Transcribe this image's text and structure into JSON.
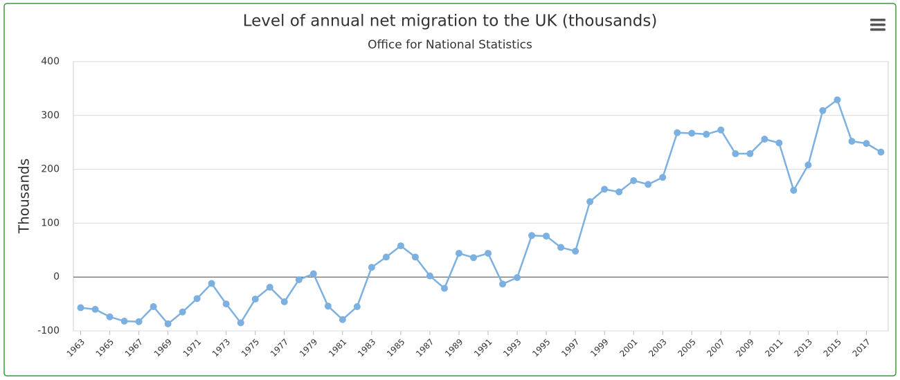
{
  "chart_data": {
    "type": "line",
    "title": "Level of annual net migration to the UK (thousands)",
    "subtitle": "Office for National Statistics",
    "y_label": "Thousands",
    "x": [
      1963,
      1964,
      1965,
      1966,
      1967,
      1968,
      1969,
      1970,
      1971,
      1972,
      1973,
      1974,
      1975,
      1976,
      1977,
      1978,
      1979,
      1980,
      1981,
      1982,
      1983,
      1984,
      1985,
      1986,
      1987,
      1988,
      1989,
      1990,
      1991,
      1992,
      1993,
      1994,
      1995,
      1996,
      1997,
      1998,
      1999,
      2000,
      2001,
      2002,
      2003,
      2004,
      2005,
      2006,
      2007,
      2008,
      2009,
      2010,
      2011,
      2012,
      2013,
      2014,
      2015,
      2016,
      2017,
      2018
    ],
    "series": [
      {
        "color": "#7cb0e0",
        "values": [
          -57,
          -60,
          -74,
          -82,
          -83,
          -55,
          -87,
          -65,
          -40,
          -12,
          -50,
          -85,
          -41,
          -19,
          -46,
          -5,
          6,
          -54,
          -79,
          -55,
          18,
          37,
          58,
          37,
          2,
          -21,
          44,
          36,
          44,
          -13,
          -1,
          77,
          76,
          55,
          48,
          140,
          163,
          158,
          179,
          172,
          185,
          268,
          267,
          265,
          273,
          229,
          229,
          256,
          249,
          161,
          208,
          309,
          329,
          252,
          248,
          232
        ]
      }
    ],
    "xlim": [
      1962.5,
      2018.5
    ],
    "xticks": [
      1963,
      1965,
      1967,
      1969,
      1971,
      1973,
      1975,
      1977,
      1979,
      1981,
      1983,
      1985,
      1987,
      1989,
      1991,
      1993,
      1995,
      1997,
      1999,
      2001,
      2003,
      2005,
      2007,
      2009,
      2011,
      2013,
      2015,
      2017
    ],
    "ylim": [
      -100,
      400
    ],
    "yticks": [
      -100,
      0,
      100,
      200,
      300,
      400
    ],
    "grid": true
  }
}
